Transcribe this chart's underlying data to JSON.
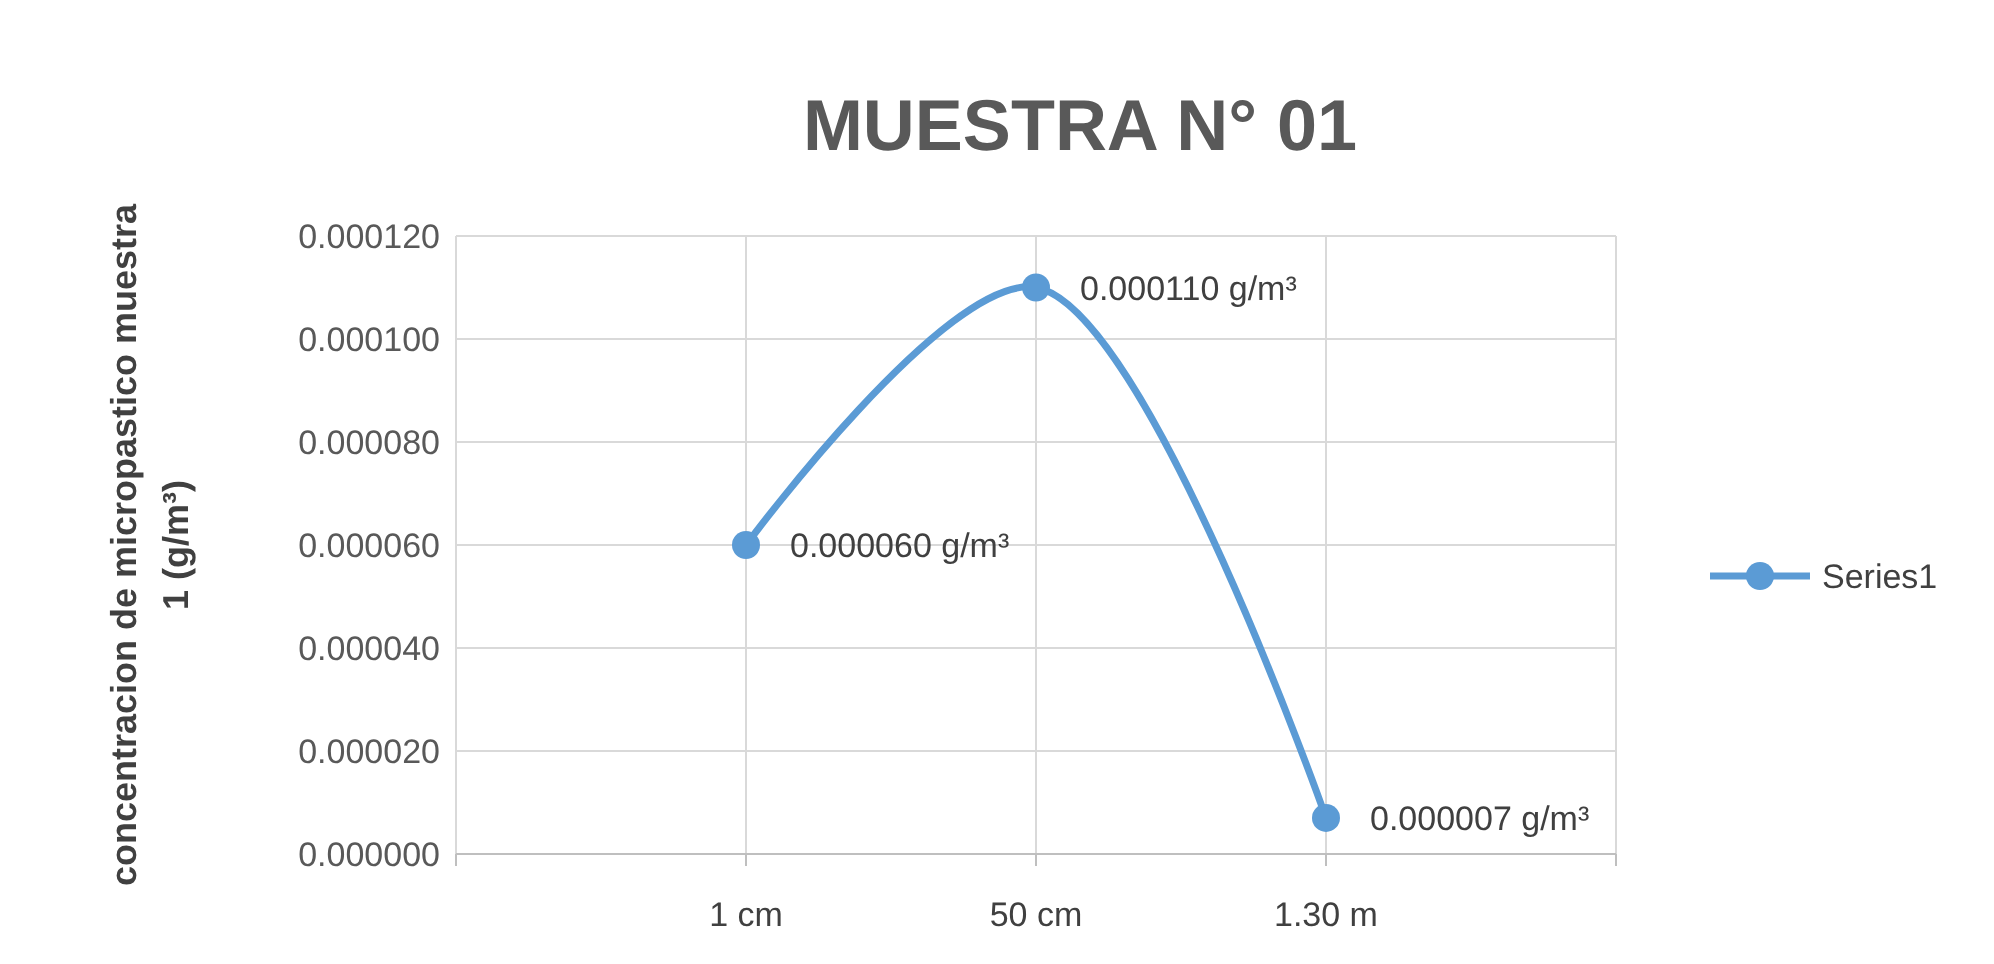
{
  "chart_data": {
    "type": "line",
    "title": "MUESTRA N° 01",
    "ylabel": "concentracion de micropastico muestra 1 (g/m³)",
    "categories": [
      null,
      "1 cm",
      "50 cm",
      "1.30 m",
      null
    ],
    "series": [
      {
        "name": "Series1",
        "color": "#5b9bd5",
        "values": [
          null,
          6e-05,
          0.00011,
          7e-06,
          null
        ],
        "value_labels": [
          null,
          "0.000060 g/m³",
          "0.000110 g/m³",
          "0.000007 g/m³",
          null
        ]
      }
    ],
    "ylim": [
      0,
      0.00012
    ],
    "yticks": [
      {
        "value": 0,
        "label": "0.000000"
      },
      {
        "value": 2e-05,
        "label": "0.000020"
      },
      {
        "value": 4e-05,
        "label": "0.000040"
      },
      {
        "value": 6e-05,
        "label": "0.000060"
      },
      {
        "value": 8e-05,
        "label": "0.000080"
      },
      {
        "value": 0.0001,
        "label": "0.000100"
      },
      {
        "value": 0.00012,
        "label": "0.000120"
      }
    ],
    "grid": true,
    "legend": "right",
    "marker": "circle",
    "line_style": "solid"
  }
}
